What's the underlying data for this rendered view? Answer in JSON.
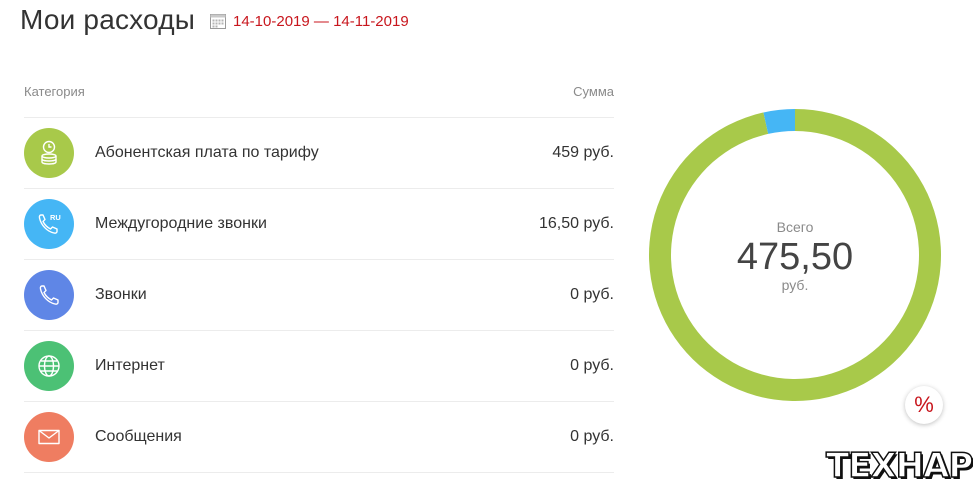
{
  "header": {
    "title": "Мои расходы",
    "period": "14-10-2019 — 14-11-2019"
  },
  "table": {
    "col_category": "Категория",
    "col_sum": "Сумма",
    "rows": [
      {
        "name": "Абонентская плата по тарифу",
        "amount": "459 руб.",
        "icon": "coins-clock-icon",
        "color": "#a8c94a"
      },
      {
        "name": "Междугородние звонки",
        "amount": "16,50 руб.",
        "icon": "phone-ru-icon",
        "color": "#45b6f5"
      },
      {
        "name": "Звонки",
        "amount": "0 руб.",
        "icon": "phone-icon",
        "color": "#5f86e6"
      },
      {
        "name": "Интернет",
        "amount": "0 руб.",
        "icon": "globe-icon",
        "color": "#4cc175"
      },
      {
        "name": "Сообщения",
        "amount": "0 руб.",
        "icon": "envelope-icon",
        "color": "#ef7d61"
      }
    ]
  },
  "total": {
    "label": "Всего",
    "value": "475,50",
    "unit": "руб."
  },
  "chart_data": {
    "type": "pie",
    "categories": [
      "Абонентская плата по тарифу",
      "Междугородние звонки",
      "Звонки",
      "Интернет",
      "Сообщения"
    ],
    "values": [
      459,
      16.5,
      0,
      0,
      0
    ],
    "colors": [
      "#a8c94a",
      "#45b6f5",
      "#5f86e6",
      "#4cc175",
      "#ef7d61"
    ]
  },
  "percent_button": "%",
  "watermark": "ТЕХНАРЬ"
}
